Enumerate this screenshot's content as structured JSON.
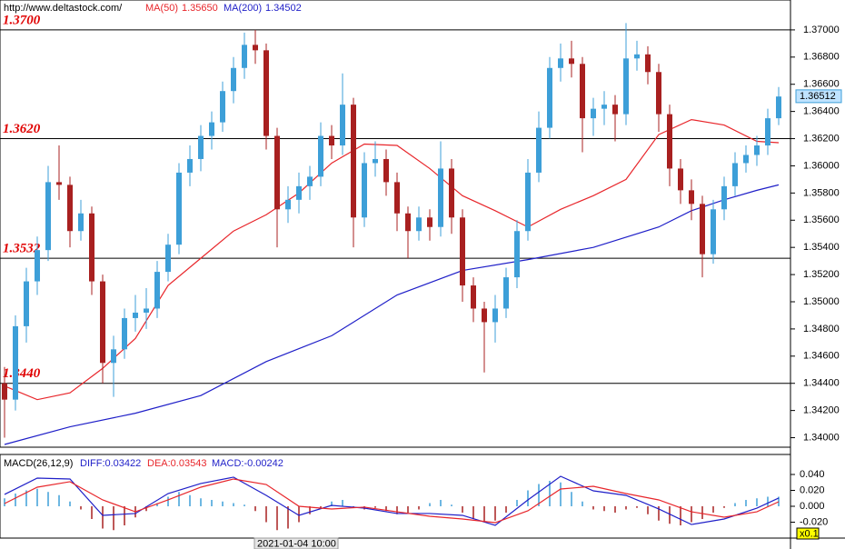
{
  "chart_data": [
    {
      "type": "candlestick",
      "source": "http://www.deltastock.com/",
      "up_color": "#3d9fd8",
      "down_color": "#a82020",
      "ylim": [
        1.3393,
        1.3722
      ],
      "yticks": [
        {
          "value": 1.34,
          "label": "1.34000"
        },
        {
          "value": 1.342,
          "label": "1.34200"
        },
        {
          "value": 1.344,
          "label": "1.34400"
        },
        {
          "value": 1.346,
          "label": "1.34600"
        },
        {
          "value": 1.348,
          "label": "1.34800"
        },
        {
          "value": 1.35,
          "label": "1.35000"
        },
        {
          "value": 1.352,
          "label": "1.35200"
        },
        {
          "value": 1.354,
          "label": "1.35400"
        },
        {
          "value": 1.356,
          "label": "1.35600"
        },
        {
          "value": 1.358,
          "label": "1.35800"
        },
        {
          "value": 1.36,
          "label": "1.36000"
        },
        {
          "value": 1.362,
          "label": "1.36200"
        },
        {
          "value": 1.364,
          "label": "1.36400"
        },
        {
          "value": 1.366,
          "label": "1.36600"
        },
        {
          "value": 1.368,
          "label": "1.36800"
        },
        {
          "value": 1.37,
          "label": "1.37000"
        }
      ],
      "ohlc": [
        [
          1.344,
          1.3452,
          1.34,
          1.3428
        ],
        [
          1.3428,
          1.349,
          1.342,
          1.3482
        ],
        [
          1.3482,
          1.3525,
          1.347,
          1.3515
        ],
        [
          1.3515,
          1.3548,
          1.3505,
          1.3538
        ],
        [
          1.3538,
          1.36,
          1.353,
          1.3588
        ],
        [
          1.3588,
          1.3615,
          1.3575,
          1.3586
        ],
        [
          1.3586,
          1.3592,
          1.354,
          1.3552
        ],
        [
          1.3552,
          1.3575,
          1.3545,
          1.3565
        ],
        [
          1.3565,
          1.357,
          1.3505,
          1.3515
        ],
        [
          1.3515,
          1.352,
          1.344,
          1.3455
        ],
        [
          1.3455,
          1.3475,
          1.343,
          1.3465
        ],
        [
          1.3465,
          1.3495,
          1.3458,
          1.3488
        ],
        [
          1.3488,
          1.3505,
          1.3478,
          1.3492
        ],
        [
          1.3492,
          1.351,
          1.348,
          1.3495
        ],
        [
          1.3495,
          1.353,
          1.3488,
          1.3522
        ],
        [
          1.3522,
          1.355,
          1.3515,
          1.3542
        ],
        [
          1.3542,
          1.3602,
          1.3535,
          1.3595
        ],
        [
          1.3595,
          1.3615,
          1.3585,
          1.3605
        ],
        [
          1.3605,
          1.363,
          1.3596,
          1.3622
        ],
        [
          1.3622,
          1.364,
          1.3612,
          1.3632
        ],
        [
          1.3632,
          1.3662,
          1.3625,
          1.3655
        ],
        [
          1.3655,
          1.368,
          1.3646,
          1.3672
        ],
        [
          1.3672,
          1.3698,
          1.3664,
          1.3689
        ],
        [
          1.3689,
          1.37,
          1.3675,
          1.3685
        ],
        [
          1.3685,
          1.369,
          1.3612,
          1.3622
        ],
        [
          1.3622,
          1.3628,
          1.354,
          1.3568
        ],
        [
          1.3568,
          1.3585,
          1.3558,
          1.3575
        ],
        [
          1.3575,
          1.3595,
          1.3565,
          1.3585
        ],
        [
          1.3585,
          1.36,
          1.3575,
          1.3592
        ],
        [
          1.3592,
          1.3632,
          1.3585,
          1.3622
        ],
        [
          1.3622,
          1.363,
          1.3605,
          1.3615
        ],
        [
          1.3615,
          1.3668,
          1.3608,
          1.3645
        ],
        [
          1.3645,
          1.365,
          1.354,
          1.3562
        ],
        [
          1.3562,
          1.361,
          1.3555,
          1.3602
        ],
        [
          1.3602,
          1.3618,
          1.3592,
          1.3605
        ],
        [
          1.3605,
          1.3612,
          1.3578,
          1.3588
        ],
        [
          1.3588,
          1.3595,
          1.3552,
          1.3565
        ],
        [
          1.3565,
          1.357,
          1.3532,
          1.3552
        ],
        [
          1.3552,
          1.357,
          1.3545,
          1.3562
        ],
        [
          1.3562,
          1.3568,
          1.3545,
          1.3555
        ],
        [
          1.3555,
          1.3618,
          1.3548,
          1.3598
        ],
        [
          1.3598,
          1.3605,
          1.355,
          1.3562
        ],
        [
          1.3562,
          1.3568,
          1.35,
          1.3512
        ],
        [
          1.3512,
          1.3518,
          1.3485,
          1.3495
        ],
        [
          1.3495,
          1.35,
          1.3448,
          1.3485
        ],
        [
          1.3485,
          1.3505,
          1.347,
          1.3495
        ],
        [
          1.3495,
          1.3525,
          1.3488,
          1.3518
        ],
        [
          1.3518,
          1.356,
          1.351,
          1.3552
        ],
        [
          1.3552,
          1.3605,
          1.3545,
          1.3595
        ],
        [
          1.3595,
          1.364,
          1.3588,
          1.3628
        ],
        [
          1.3628,
          1.368,
          1.362,
          1.3672
        ],
        [
          1.3672,
          1.369,
          1.3662,
          1.3679
        ],
        [
          1.3679,
          1.3692,
          1.3665,
          1.3675
        ],
        [
          1.3675,
          1.368,
          1.361,
          1.3635
        ],
        [
          1.3635,
          1.365,
          1.3622,
          1.3642
        ],
        [
          1.3642,
          1.3655,
          1.363,
          1.3645
        ],
        [
          1.3645,
          1.3652,
          1.3618,
          1.3638
        ],
        [
          1.3638,
          1.3705,
          1.363,
          1.3679
        ],
        [
          1.3679,
          1.3692,
          1.367,
          1.3682
        ],
        [
          1.3682,
          1.3688,
          1.366,
          1.3669
        ],
        [
          1.3669,
          1.3675,
          1.3625,
          1.3638
        ],
        [
          1.3638,
          1.3645,
          1.3585,
          1.3598
        ],
        [
          1.3598,
          1.3605,
          1.3572,
          1.3582
        ],
        [
          1.3582,
          1.359,
          1.356,
          1.3572
        ],
        [
          1.3572,
          1.3578,
          1.3518,
          1.3535
        ],
        [
          1.3535,
          1.3575,
          1.3528,
          1.3568
        ],
        [
          1.3568,
          1.3592,
          1.356,
          1.3585
        ],
        [
          1.3585,
          1.361,
          1.3578,
          1.3602
        ],
        [
          1.3602,
          1.3615,
          1.3595,
          1.3608
        ],
        [
          1.3608,
          1.3622,
          1.36,
          1.3615
        ],
        [
          1.3615,
          1.3642,
          1.3608,
          1.3635
        ],
        [
          1.3635,
          1.3658,
          1.363,
          1.3651
        ]
      ],
      "series": [
        {
          "name": "MA(50)",
          "legend_value": "1.35650",
          "color": "#e8262b",
          "x": [
            0,
            3,
            6,
            9,
            12,
            15,
            18,
            21,
            24,
            27,
            30,
            33,
            36,
            39,
            42,
            45,
            48,
            51,
            54,
            57,
            60,
            63,
            66,
            69,
            71
          ],
          "values": [
            1.3438,
            1.3428,
            1.3433,
            1.3451,
            1.3473,
            1.3512,
            1.3532,
            1.3552,
            1.3564,
            1.358,
            1.3602,
            1.3616,
            1.3615,
            1.3598,
            1.3578,
            1.3567,
            1.3555,
            1.3568,
            1.3578,
            1.359,
            1.3623,
            1.3634,
            1.363,
            1.3618,
            1.3617
          ]
        },
        {
          "name": "MA(200)",
          "legend_value": "1.34502",
          "color": "#1f1fc8",
          "x": [
            0,
            6,
            12,
            18,
            24,
            30,
            36,
            42,
            48,
            54,
            60,
            63,
            66,
            69,
            71
          ],
          "values": [
            1.3395,
            1.3408,
            1.3418,
            1.3431,
            1.3456,
            1.3475,
            1.3505,
            1.3523,
            1.3531,
            1.354,
            1.3555,
            1.3567,
            1.3575,
            1.3582,
            1.3586
          ]
        }
      ],
      "levels": [
        {
          "value": 1.37,
          "label": "1.3700"
        },
        {
          "value": 1.362,
          "label": "1.3620"
        },
        {
          "value": 1.3532,
          "label": "1.3532"
        },
        {
          "value": 1.344,
          "label": "1.3440"
        }
      ],
      "level_color": "#e00000",
      "last_price": 1.36512,
      "cursor_label": "2021-01-04 10:00"
    },
    {
      "type": "macd",
      "title": "MACD(26,12,9)",
      "scale_label": "x0.1",
      "ylim": [
        -0.04,
        0.0617
      ],
      "yticks": [
        {
          "value": 0.04,
          "label": "0.040"
        },
        {
          "value": 0.02,
          "label": "0.020"
        },
        {
          "value": 0,
          "label": "0.000"
        },
        {
          "value": -0.02,
          "label": "-0.020"
        }
      ],
      "series": [
        {
          "name": "DIFF:0.03422",
          "color": "#1f1fc8",
          "x": [
            0,
            3,
            6,
            9,
            12,
            15,
            18,
            21,
            24,
            27,
            30,
            33,
            36,
            39,
            42,
            45,
            48,
            51,
            54,
            57,
            60,
            63,
            66,
            69,
            71
          ],
          "values": [
            0.0149,
            0.0354,
            0.0343,
            -0.0114,
            -0.0091,
            0.016,
            0.0286,
            0.0366,
            0.0137,
            -0.0114,
            0.0011,
            -0.0023,
            -0.0091,
            -0.0091,
            -0.0114,
            -0.024,
            0.008,
            0.0377,
            0.0194,
            0.0137,
            -0.0034,
            -0.0229,
            -0.016,
            -0.0023,
            0.0103
          ]
        },
        {
          "name": "DEA:0.03543",
          "color": "#e8262b",
          "x": [
            0,
            3,
            6,
            9,
            12,
            15,
            18,
            21,
            24,
            27,
            30,
            33,
            36,
            39,
            42,
            45,
            48,
            51,
            54,
            57,
            60,
            63,
            66,
            69,
            71
          ],
          "values": [
            0.0034,
            0.024,
            0.0309,
            0.008,
            -0.0069,
            0.008,
            0.024,
            0.0343,
            0.0274,
            0.0,
            -0.0034,
            -0.0011,
            -0.0069,
            -0.0126,
            -0.016,
            -0.0206,
            -0.0057,
            0.0217,
            0.0251,
            0.016,
            0.008,
            -0.0069,
            -0.0137,
            -0.0069,
            0.0057
          ]
        }
      ],
      "histogram": {
        "name": "MACD:-0.00242",
        "up_color": "#3d9fd8",
        "down_color": "#a82020",
        "values": [
          0.01,
          0.016,
          0.02,
          0.022,
          0.018,
          0.014,
          0.006,
          -0.004,
          -0.016,
          -0.028,
          -0.03,
          -0.024,
          -0.014,
          -0.006,
          0.004,
          0.012,
          0.018,
          0.014,
          0.01,
          0.008,
          0.006,
          0.004,
          0.002,
          -0.006,
          -0.02,
          -0.03,
          -0.028,
          -0.02,
          -0.01,
          -0.002,
          0.006,
          0.008,
          -0.002,
          -0.004,
          -0.002,
          -0.006,
          -0.01,
          -0.008,
          -0.004,
          0.004,
          0.008,
          0.002,
          -0.008,
          -0.016,
          -0.02,
          -0.018,
          -0.008,
          0.008,
          0.02,
          0.028,
          0.032,
          0.03,
          0.018,
          0.006,
          -0.004,
          -0.006,
          -0.008,
          -0.004,
          -0.002,
          -0.01,
          -0.018,
          -0.022,
          -0.024,
          -0.02,
          -0.016,
          -0.008,
          -0.002,
          0.004,
          0.008,
          0.01,
          0.012,
          0.012
        ]
      }
    }
  ]
}
